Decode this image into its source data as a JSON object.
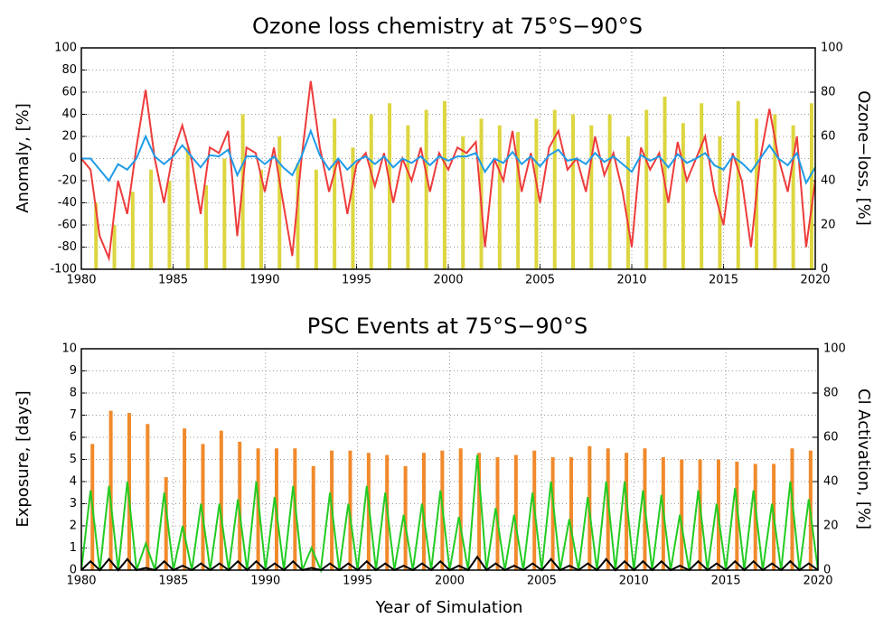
{
  "chart_data": [
    {
      "type": "combo",
      "title": "Ozone loss chemistry at 75°S−90°S",
      "ylabel": "Anomaly, [%]",
      "y2label": "Ozone−loss, [%]",
      "xlim": [
        1980,
        2020
      ],
      "xticks": [
        1980,
        1985,
        1990,
        1995,
        2000,
        2005,
        2010,
        2015,
        2020
      ],
      "ylim": [
        -100,
        100
      ],
      "yticks": [
        -100,
        -80,
        -60,
        -40,
        -20,
        0,
        20,
        40,
        60,
        80,
        100
      ],
      "y2lim": [
        0,
        100
      ],
      "y2ticks": [
        0,
        20,
        40,
        60,
        80,
        100
      ],
      "grid": true,
      "x": [
        1980,
        1980.5,
        1981,
        1981.5,
        1982,
        1982.5,
        1983,
        1983.5,
        1984,
        1984.5,
        1985,
        1985.5,
        1986,
        1986.5,
        1987,
        1987.5,
        1988,
        1988.5,
        1989,
        1989.5,
        1990,
        1990.5,
        1991,
        1991.5,
        1992,
        1992.5,
        1993,
        1993.5,
        1994,
        1994.5,
        1995,
        1995.5,
        1996,
        1996.5,
        1997,
        1997.5,
        1998,
        1998.5,
        1999,
        1999.5,
        2000,
        2000.5,
        2001,
        2001.5,
        2002,
        2002.5,
        2003,
        2003.5,
        2004,
        2004.5,
        2005,
        2005.5,
        2006,
        2006.5,
        2007,
        2007.5,
        2008,
        2008.5,
        2009,
        2009.5,
        2010,
        2010.5,
        2011,
        2011.5,
        2012,
        2012.5,
        2013,
        2013.5,
        2014,
        2014.5,
        2015,
        2015.5,
        2016,
        2016.5,
        2017,
        2017.5,
        2018,
        2018.5,
        2019,
        2019.5,
        2020
      ],
      "series": [
        {
          "kind": "bar",
          "axis": "y2",
          "color": "#dcd640",
          "x": [
            1980.8,
            1981.8,
            1982.8,
            1983.8,
            1984.8,
            1985.8,
            1986.8,
            1987.8,
            1988.8,
            1989.8,
            1990.8,
            1991.8,
            1992.8,
            1993.8,
            1994.8,
            1995.8,
            1996.8,
            1997.8,
            1998.8,
            1999.8,
            2000.8,
            2001.8,
            2002.8,
            2003.8,
            2004.8,
            2005.8,
            2006.8,
            2007.8,
            2008.8,
            2009.8,
            2010.8,
            2011.8,
            2012.8,
            2013.8,
            2014.8,
            2015.8,
            2016.8,
            2017.8,
            2018.8,
            2019.8
          ],
          "values": [
            30,
            20,
            35,
            45,
            40,
            55,
            38,
            50,
            70,
            45,
            60,
            48,
            45,
            68,
            55,
            70,
            75,
            65,
            72,
            76,
            60,
            68,
            65,
            62,
            68,
            72,
            70,
            65,
            70,
            60,
            72,
            78,
            66,
            75,
            60,
            76,
            68,
            70,
            65,
            75
          ]
        },
        {
          "kind": "line",
          "color": "#ee3b3b",
          "values": [
            0,
            -10,
            -70,
            -90,
            -20,
            -50,
            10,
            62,
            0,
            -40,
            5,
            30,
            0,
            -50,
            10,
            5,
            25,
            -70,
            10,
            5,
            -30,
            10,
            -40,
            -88,
            0,
            70,
            10,
            -30,
            0,
            -50,
            -5,
            5,
            -25,
            5,
            -40,
            0,
            -20,
            10,
            -30,
            5,
            -10,
            10,
            5,
            15,
            -80,
            0,
            -20,
            25,
            -30,
            5,
            -40,
            10,
            25,
            -10,
            0,
            -30,
            20,
            -15,
            5,
            -30,
            -80,
            10,
            -10,
            5,
            -40,
            15,
            -20,
            0,
            20,
            -30,
            -60,
            5,
            -20,
            -80,
            0,
            45,
            0,
            -30,
            20,
            -80,
            -20
          ]
        },
        {
          "kind": "line",
          "color": "#1e9be8",
          "values": [
            0,
            0,
            -10,
            -20,
            -5,
            -10,
            0,
            20,
            2,
            -5,
            2,
            12,
            2,
            -8,
            3,
            2,
            8,
            -15,
            2,
            2,
            -5,
            2,
            -8,
            -15,
            2,
            25,
            3,
            -10,
            0,
            -10,
            -2,
            2,
            -5,
            2,
            -8,
            0,
            -4,
            2,
            -6,
            2,
            -2,
            2,
            2,
            5,
            -12,
            0,
            -4,
            6,
            -5,
            2,
            -7,
            3,
            8,
            -2,
            0,
            -5,
            5,
            -3,
            2,
            -5,
            -12,
            3,
            -2,
            2,
            -8,
            4,
            -4,
            0,
            5,
            -6,
            -10,
            2,
            -4,
            -12,
            0,
            12,
            0,
            -6,
            5,
            -22,
            -8
          ]
        }
      ]
    },
    {
      "type": "combo",
      "title": "PSC Events at 75°S−90°S",
      "ylabel": "Exposure, [days]",
      "y2label": "Cl Activation, [%]",
      "xlabel": "Year of Simulation",
      "xlim": [
        1980,
        2020
      ],
      "xticks": [
        1980,
        1985,
        1990,
        1995,
        2000,
        2005,
        2010,
        2015,
        2020
      ],
      "ylim": [
        0,
        10
      ],
      "yticks": [
        0,
        1,
        2,
        3,
        4,
        5,
        6,
        7,
        8,
        9,
        10
      ],
      "y2lim": [
        0,
        100
      ],
      "y2ticks": [
        0,
        20,
        40,
        60,
        80,
        100
      ],
      "grid": true,
      "x": [
        1980,
        1980.5,
        1981,
        1981.5,
        1982,
        1982.5,
        1983,
        1983.5,
        1984,
        1984.5,
        1985,
        1985.5,
        1986,
        1986.5,
        1987,
        1987.5,
        1988,
        1988.5,
        1989,
        1989.5,
        1990,
        1990.5,
        1991,
        1991.5,
        1992,
        1992.5,
        1993,
        1993.5,
        1994,
        1994.5,
        1995,
        1995.5,
        1996,
        1996.5,
        1997,
        1997.5,
        1998,
        1998.5,
        1999,
        1999.5,
        2000,
        2000.5,
        2001,
        2001.5,
        2002,
        2002.5,
        2003,
        2003.5,
        2004,
        2004.5,
        2005,
        2005.5,
        2006,
        2006.5,
        2007,
        2007.5,
        2008,
        2008.5,
        2009,
        2009.5,
        2010,
        2010.5,
        2011,
        2011.5,
        2012,
        2012.5,
        2013,
        2013.5,
        2014,
        2014.5,
        2015,
        2015.5,
        2016,
        2016.5,
        2017,
        2017.5,
        2018,
        2018.5,
        2019,
        2019.5,
        2020
      ],
      "series": [
        {
          "kind": "bar",
          "color": "#f08a2c",
          "x": [
            1980.6,
            1981.6,
            1982.6,
            1983.6,
            1984.6,
            1985.6,
            1986.6,
            1987.6,
            1988.6,
            1989.6,
            1990.6,
            1991.6,
            1992.6,
            1993.6,
            1994.6,
            1995.6,
            1996.6,
            1997.6,
            1998.6,
            1999.6,
            2000.6,
            2001.6,
            2002.6,
            2003.6,
            2004.6,
            2005.6,
            2006.6,
            2007.6,
            2008.6,
            2009.6,
            2010.6,
            2011.6,
            2012.6,
            2013.6,
            2014.6,
            2015.6,
            2016.6,
            2017.6,
            2018.6,
            2019.6
          ],
          "values": [
            5.7,
            7.2,
            7.1,
            6.6,
            4.2,
            6.4,
            5.7,
            6.3,
            5.8,
            5.5,
            5.5,
            5.5,
            4.7,
            5.4,
            5.4,
            5.3,
            5.2,
            4.7,
            5.3,
            5.4,
            5.5,
            5.3,
            5.1,
            5.2,
            5.4,
            5.1,
            5.1,
            5.6,
            5.5,
            5.3,
            5.5,
            5.1,
            5.0,
            5.0,
            5.0,
            4.9,
            4.8,
            4.8,
            5.5,
            5.4
          ]
        },
        {
          "kind": "line",
          "axis": "y2",
          "color": "#22cc22",
          "values": [
            0,
            36,
            0,
            38,
            0,
            40,
            0,
            12,
            0,
            35,
            0,
            20,
            0,
            30,
            0,
            30,
            0,
            32,
            0,
            40,
            0,
            33,
            0,
            38,
            0,
            10,
            0,
            35,
            0,
            30,
            0,
            38,
            0,
            35,
            0,
            25,
            0,
            30,
            0,
            36,
            0,
            24,
            0,
            52,
            0,
            28,
            0,
            25,
            0,
            35,
            0,
            40,
            0,
            23,
            0,
            33,
            0,
            40,
            0,
            40,
            0,
            36,
            0,
            34,
            0,
            25,
            0,
            36,
            0,
            30,
            0,
            37,
            0,
            36,
            0,
            30,
            0,
            40,
            0,
            32,
            0
          ]
        },
        {
          "kind": "line",
          "color": "#000000",
          "values": [
            0,
            0.4,
            0,
            0.5,
            0,
            0.5,
            0,
            0.1,
            0,
            0.4,
            0,
            0.2,
            0,
            0.3,
            0,
            0.3,
            0,
            0.4,
            0,
            0.4,
            0,
            0.3,
            0,
            0.4,
            0,
            0.1,
            0,
            0.3,
            0,
            0.3,
            0,
            0.4,
            0,
            0.3,
            0,
            0.2,
            0,
            0.3,
            0,
            0.4,
            0,
            0.2,
            0,
            0.6,
            0,
            0.3,
            0,
            0.2,
            0,
            0.3,
            0,
            0.5,
            0,
            0.2,
            0,
            0.3,
            0,
            0.5,
            0,
            0.4,
            0,
            0.4,
            0,
            0.4,
            0,
            0.2,
            0,
            0.4,
            0,
            0.3,
            0,
            0.4,
            0,
            0.4,
            0,
            0.3,
            0,
            0.4,
            0,
            0.3,
            0
          ]
        }
      ]
    }
  ]
}
